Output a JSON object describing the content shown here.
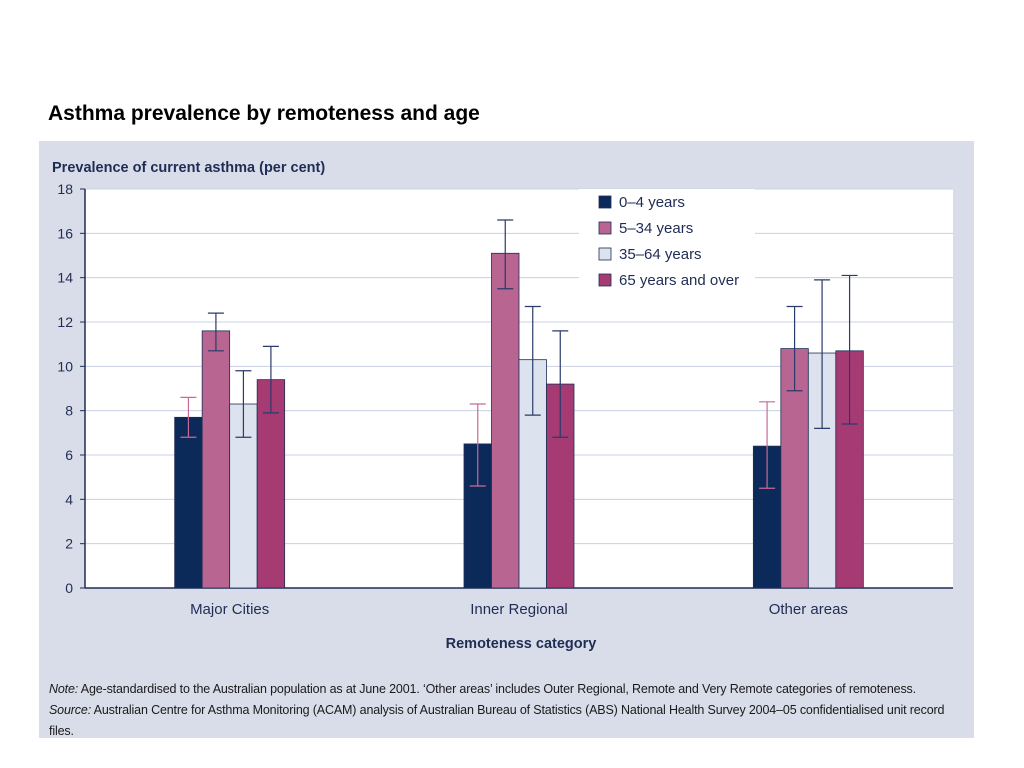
{
  "slide": {
    "title": "Asthma prevalence by remoteness and age"
  },
  "colors": {
    "panel_bg": "#d9dde9",
    "plot_bg": "#ffffff",
    "axis": "#1f2d55",
    "grid": "#c9d0e2",
    "error_bar": "#2a3a6a",
    "error_bar_first": "#c96a97"
  },
  "notes": {
    "note_label": "Note:",
    "note_text": "Age-standardised to the Australian population as at June 2001. ‘Other areas’ includes Outer Regional, Remote and Very Remote categories of remoteness.",
    "source_label": "Source:",
    "source_text": "Australian Centre for Asthma Monitoring (ACAM) analysis of Australian Bureau of Statistics (ABS) National Health Survey 2004–05 confidentialised unit record files."
  },
  "chart_data": {
    "type": "bar",
    "title": "",
    "ylabel": "Prevalence of current asthma (per cent)",
    "xlabel": "Remoteness category",
    "ylim": [
      0,
      18
    ],
    "yticks": [
      0,
      2,
      4,
      6,
      8,
      10,
      12,
      14,
      16,
      18
    ],
    "ytick_labels": [
      "0",
      "2",
      "4",
      "6",
      "8",
      "10",
      "12",
      "14",
      "16",
      "18"
    ],
    "grid": true,
    "legend_position": "top-right",
    "categories": [
      "Major Cities",
      "Inner Regional",
      "Other areas"
    ],
    "series": [
      {
        "name": "0–4 years",
        "color": "#0b2a5a",
        "values": [
          7.7,
          6.5,
          6.4
        ],
        "error_low": [
          6.8,
          4.6,
          4.5
        ],
        "error_high": [
          8.6,
          8.3,
          8.4
        ]
      },
      {
        "name": "5–34 years",
        "color": "#b86592",
        "values": [
          11.6,
          15.1,
          10.8
        ],
        "error_low": [
          10.7,
          13.5,
          8.9
        ],
        "error_high": [
          12.4,
          16.6,
          12.7
        ]
      },
      {
        "name": "35–64 years",
        "color": "#dce3ef",
        "values": [
          8.3,
          10.3,
          10.6
        ],
        "error_low": [
          6.8,
          7.8,
          7.2
        ],
        "error_high": [
          9.8,
          12.7,
          13.9
        ]
      },
      {
        "name": "65 years and over",
        "color": "#a63b74",
        "values": [
          9.4,
          9.2,
          10.7
        ],
        "error_low": [
          7.9,
          6.8,
          7.4
        ],
        "error_high": [
          10.9,
          11.6,
          14.1
        ]
      }
    ]
  }
}
